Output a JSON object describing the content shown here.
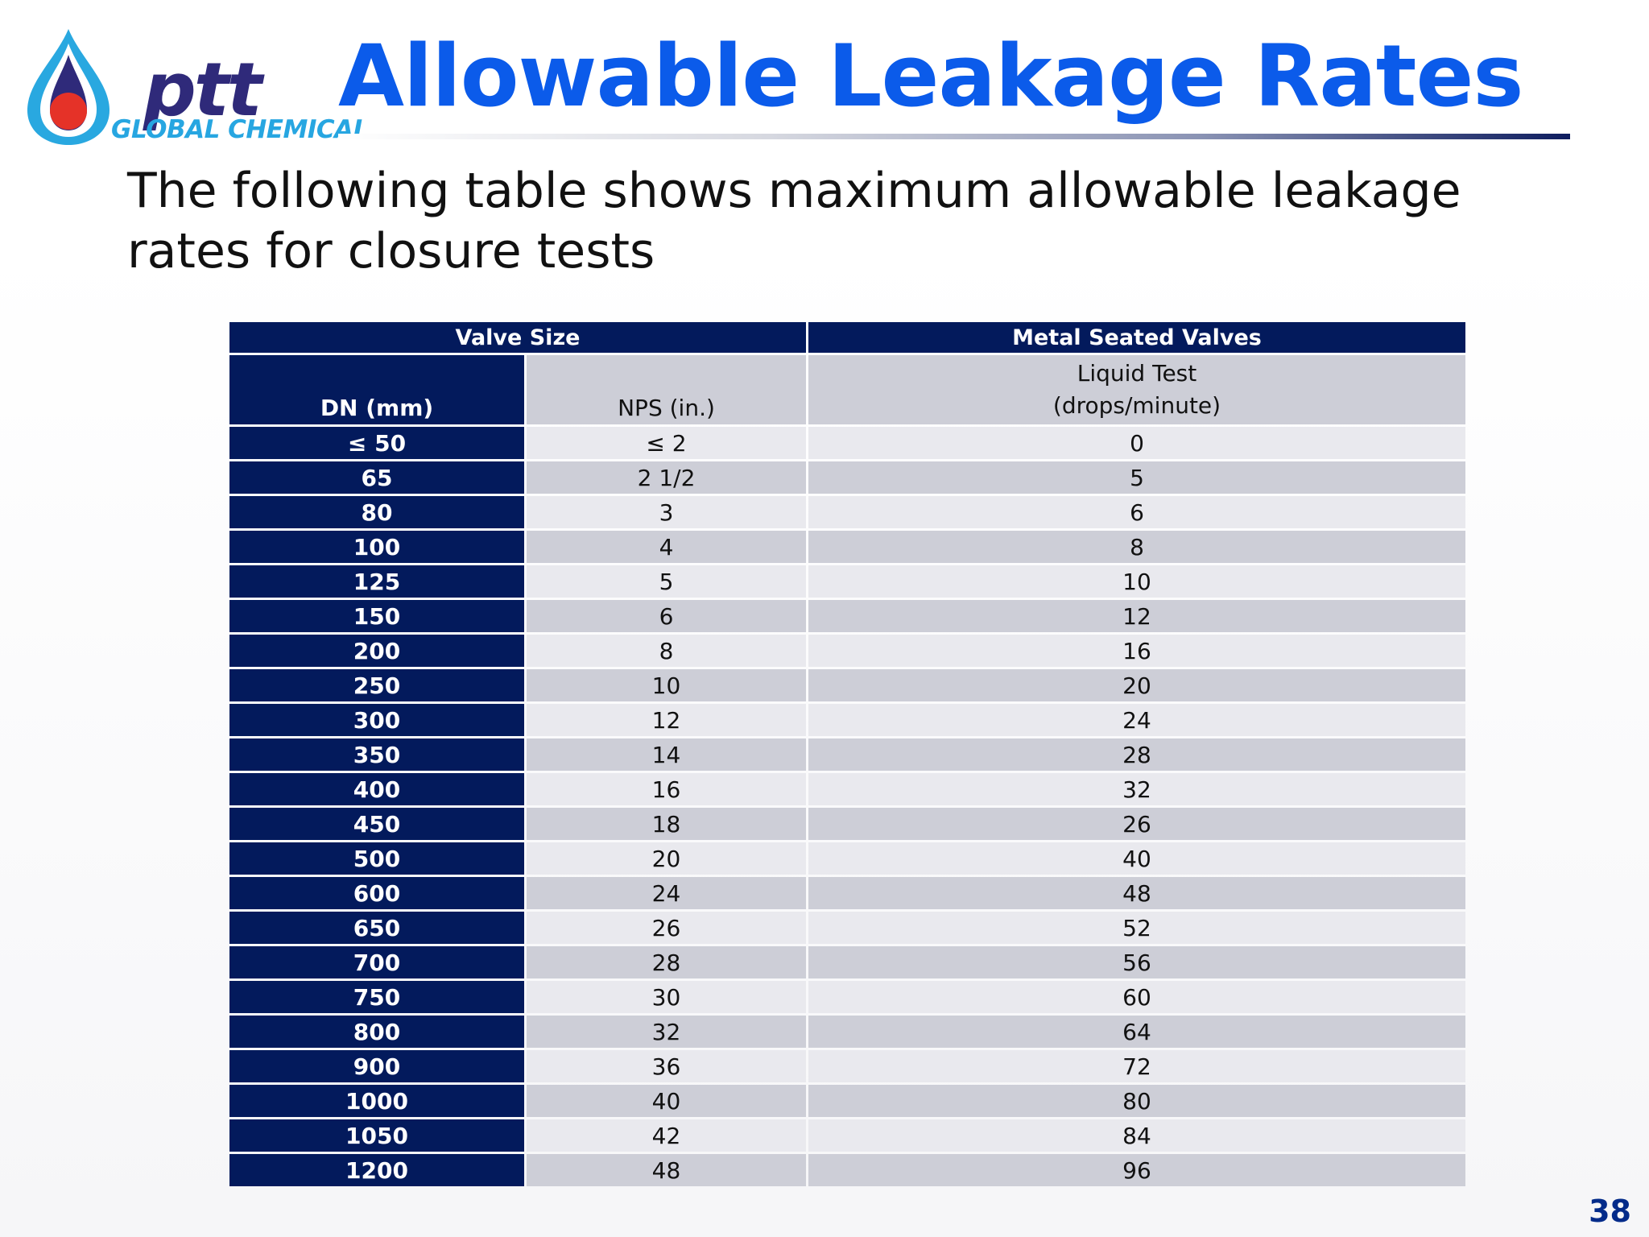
{
  "logo": {
    "word": "ptt",
    "sub": "GLOBAL CHEMICAL"
  },
  "title": "Allowable Leakage Rates",
  "subtitle": "The following table shows maximum allowable leakage rates for closure tests",
  "table": {
    "group_headers": [
      "Valve Size",
      "Metal Seated Valves"
    ],
    "col_headers": {
      "dn": "DN (mm)",
      "nps": "NPS (in.)",
      "liquid_line1": "Liquid Test",
      "liquid_line2": "(drops/minute)"
    },
    "rows": [
      {
        "dn": "≤ 50",
        "nps": "≤ 2",
        "rate": "0"
      },
      {
        "dn": "65",
        "nps": "2 1/2",
        "rate": "5"
      },
      {
        "dn": "80",
        "nps": "3",
        "rate": "6"
      },
      {
        "dn": "100",
        "nps": "4",
        "rate": "8"
      },
      {
        "dn": "125",
        "nps": "5",
        "rate": "10"
      },
      {
        "dn": "150",
        "nps": "6",
        "rate": "12"
      },
      {
        "dn": "200",
        "nps": "8",
        "rate": "16"
      },
      {
        "dn": "250",
        "nps": "10",
        "rate": "20"
      },
      {
        "dn": "300",
        "nps": "12",
        "rate": "24"
      },
      {
        "dn": "350",
        "nps": "14",
        "rate": "28"
      },
      {
        "dn": "400",
        "nps": "16",
        "rate": "32"
      },
      {
        "dn": "450",
        "nps": "18",
        "rate": "26"
      },
      {
        "dn": "500",
        "nps": "20",
        "rate": "40"
      },
      {
        "dn": "600",
        "nps": "24",
        "rate": "48"
      },
      {
        "dn": "650",
        "nps": "26",
        "rate": "52"
      },
      {
        "dn": "700",
        "nps": "28",
        "rate": "56"
      },
      {
        "dn": "750",
        "nps": "30",
        "rate": "60"
      },
      {
        "dn": "800",
        "nps": "32",
        "rate": "64"
      },
      {
        "dn": "900",
        "nps": "36",
        "rate": "72"
      },
      {
        "dn": "1000",
        "nps": "40",
        "rate": "80"
      },
      {
        "dn": "1050",
        "nps": "42",
        "rate": "84"
      },
      {
        "dn": "1200",
        "nps": "48",
        "rate": "96"
      }
    ]
  },
  "page_number": "38",
  "colors": {
    "title": "#0b5bea",
    "header_navy": "#031a5c",
    "row_light": "#e9e9ee",
    "row_dark": "#cdced7",
    "logo_word": "#2f2a7a",
    "logo_sub": "#27a6e1",
    "logo_drop_blue": "#29a8e0",
    "logo_drop_red": "#e53228"
  }
}
